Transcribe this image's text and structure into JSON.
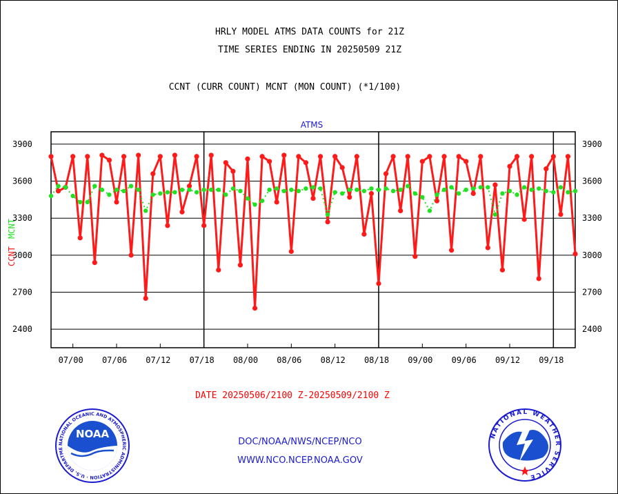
{
  "header": {
    "title1": "HRLY MODEL ATMS DATA COUNTS for 21Z",
    "title2": "TIME SERIES ENDING IN 20250509 21Z",
    "subtitle": "CCNT (CURR COUNT) MCNT (MON COUNT) (*1/100)"
  },
  "footer": {
    "date_range": "DATE 20250506/2100 Z-20250509/2100 Z",
    "org": "DOC/NOAA/NWS/NCEP/NCO",
    "url": "WWW.NCO.NCEP.NOAA.GOV"
  },
  "logos": {
    "left": "NOAA",
    "left_ring": "NATIONAL OCEANIC AND ATMOSPHERIC ADMINISTRATION · U.S. DEPARTMENT OF COMMERCE",
    "right_ring": "NATIONAL WEATHER SERVICE"
  },
  "colors": {
    "ccnt": "#ff1a1a",
    "mcnt": "#22e022",
    "plot_title": "#1a1ad0",
    "axis": "#000000"
  },
  "chart_data": {
    "type": "line",
    "title": "ATMS",
    "ylabel_ccnt": "CCNT",
    "ylabel_mcnt": "MCNT",
    "yticks": [
      2400,
      2700,
      3000,
      3300,
      3600,
      3900
    ],
    "ylim": [
      2250,
      4000
    ],
    "xlim": [
      0,
      72
    ],
    "xticks": [
      {
        "x": 3,
        "label": "07/00"
      },
      {
        "x": 9,
        "label": "07/06"
      },
      {
        "x": 15,
        "label": "07/12"
      },
      {
        "x": 21,
        "label": "07/18"
      },
      {
        "x": 27,
        "label": "08/00"
      },
      {
        "x": 33,
        "label": "08/06"
      },
      {
        "x": 39,
        "label": "08/12"
      },
      {
        "x": 45,
        "label": "08/18"
      },
      {
        "x": 51,
        "label": "09/00"
      },
      {
        "x": 57,
        "label": "09/06"
      },
      {
        "x": 63,
        "label": "09/12"
      },
      {
        "x": 69,
        "label": "09/18"
      }
    ],
    "day_boundaries": [
      21,
      45,
      69
    ],
    "grid": true,
    "series": [
      {
        "name": "CCNT",
        "color": "#ff1a1a",
        "values": [
          3800,
          3520,
          3550,
          3800,
          3140,
          3800,
          2940,
          3810,
          3770,
          3430,
          3800,
          3000,
          3810,
          2650,
          3660,
          3800,
          3240,
          3810,
          3350,
          3560,
          3800,
          3240,
          3810,
          2880,
          3750,
          3680,
          2920,
          3780,
          2570,
          3800,
          3760,
          3430,
          3810,
          3030,
          3800,
          3750,
          3460,
          3800,
          3270,
          3800,
          3710,
          3470,
          3800,
          3170,
          3500,
          2770,
          3660,
          3800,
          3360,
          3800,
          2990,
          3760,
          3800,
          3440,
          3800,
          3040,
          3800,
          3760,
          3500,
          3800,
          3060,
          3570,
          2880,
          3720,
          3800,
          3290,
          3800,
          2810,
          3700,
          3800,
          3330,
          3800,
          3010
        ]
      },
      {
        "name": "MCNT",
        "color": "#22e022",
        "values": [
          3480,
          3560,
          3550,
          3480,
          3430,
          3430,
          3560,
          3530,
          3490,
          3530,
          3520,
          3560,
          3530,
          3360,
          3490,
          3500,
          3510,
          3510,
          3530,
          3530,
          3510,
          3530,
          3530,
          3530,
          3490,
          3540,
          3520,
          3460,
          3410,
          3440,
          3530,
          3540,
          3520,
          3530,
          3520,
          3540,
          3550,
          3540,
          3330,
          3510,
          3500,
          3530,
          3530,
          3520,
          3540,
          3530,
          3540,
          3520,
          3530,
          3560,
          3500,
          3470,
          3360,
          3490,
          3530,
          3550,
          3500,
          3530,
          3540,
          3550,
          3550,
          3330,
          3500,
          3520,
          3490,
          3550,
          3530,
          3540,
          3520,
          3510,
          3550,
          3510,
          3520
        ]
      }
    ]
  }
}
